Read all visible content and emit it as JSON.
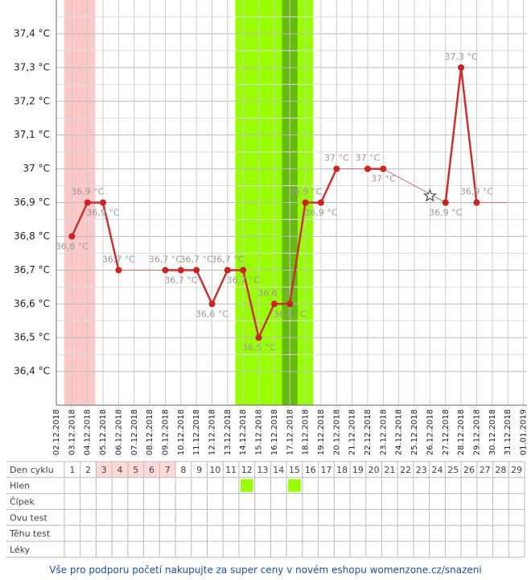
{
  "chart_data": {
    "type": "line",
    "categories": [
      "02.12.2018",
      "03.12.2018",
      "04.12.2018",
      "05.12.2018",
      "06.12.2018",
      "07.12.2018",
      "08.12.2018",
      "09.12.2018",
      "10.12.2018",
      "11.12.2018",
      "12.12.2018",
      "13.12.2018",
      "14.12.2018",
      "15.12.2018",
      "16.12.2018",
      "17.12.2018",
      "18.12.2018",
      "19.12.2018",
      "20.12.2018",
      "21.12.2018",
      "22.12.2018",
      "23.12.2018",
      "24.12.2018",
      "25.12.2018",
      "26.12.2018",
      "27.12.2018",
      "28.12.2018",
      "29.12.2018",
      "30.12.2018",
      "31.12.2018",
      "01.01.2019"
    ],
    "values": [
      null,
      36.8,
      36.9,
      36.9,
      36.7,
      null,
      null,
      36.7,
      36.7,
      36.7,
      36.6,
      36.7,
      36.7,
      36.5,
      36.6,
      36.6,
      36.9,
      36.9,
      37.0,
      null,
      37.0,
      37.0,
      null,
      null,
      null,
      36.9,
      37.3,
      36.9,
      null,
      null,
      null
    ],
    "value_labels": [
      null,
      "36,8 °C",
      "36,9 °C",
      "36,9 °C",
      "36,7 °C",
      null,
      null,
      "36,7 °C",
      "36,7 °C",
      "36,7 °C",
      "36,6 °C",
      "36,7 °C",
      "36,7 °C",
      "36,5 °C",
      "36,6 °C",
      "36,6 °C",
      "36,9 °C",
      "36,9 °C",
      "37 °C",
      null,
      "37 °C",
      "37 °C",
      null,
      null,
      null,
      "36,9 °C",
      "37,3 °C",
      "36,9 °C",
      null,
      null,
      null
    ],
    "excluded_values": [
      null,
      null,
      null,
      null,
      null,
      null,
      null,
      null,
      null,
      null,
      null,
      null,
      null,
      null,
      null,
      null,
      null,
      null,
      null,
      null,
      null,
      null,
      null,
      null,
      36.92,
      null,
      null,
      null,
      null,
      null,
      null
    ],
    "trend_end": "31.12.2018",
    "color": "#c83232",
    "ylim": [
      36.3,
      37.5
    ],
    "yticks": [
      {
        "value": 36.4,
        "label": "36,4 °C"
      },
      {
        "value": 36.5,
        "label": "36,5 °C"
      },
      {
        "value": 36.6,
        "label": "36,6 °C"
      },
      {
        "value": 36.7,
        "label": "36,7 °C"
      },
      {
        "value": 36.8,
        "label": "36,8 °C"
      },
      {
        "value": 36.9,
        "label": "36,9 °C"
      },
      {
        "value": 37,
        "label": "37 °C"
      },
      {
        "value": 37.1,
        "label": "37,1 °C"
      },
      {
        "value": 37.2,
        "label": "37,2 °C"
      },
      {
        "value": 37.3,
        "label": "37,3 °C"
      },
      {
        "value": 37.4,
        "label": "37,4 °C"
      }
    ],
    "grid": true,
    "bands": [
      {
        "from": "03.12.2018",
        "to": "04.12.2018",
        "color": "#ffc8c8"
      },
      {
        "from": "14.12.2018",
        "to": "18.12.2018",
        "color": "#99ff00"
      },
      {
        "from": "17.12.2018",
        "to": "17.12.2018",
        "color": "#66bb11"
      }
    ]
  },
  "table": {
    "row_labels": [
      "Den cyklu",
      "Hlen",
      "Čípek",
      "Ovu test",
      "Těhu test",
      "Léky"
    ],
    "cycle_days": [
      1,
      2,
      3,
      4,
      5,
      6,
      7,
      8,
      9,
      10,
      11,
      12,
      13,
      14,
      15,
      16,
      17,
      18,
      19,
      20,
      21,
      22,
      23,
      24,
      25,
      26,
      27,
      28,
      29
    ],
    "pink_days": [
      3,
      4,
      5,
      6,
      7
    ],
    "pink_color": "#ffd8d8",
    "hlen_days": [
      12,
      15
    ],
    "hlen_color": "#99ff00"
  },
  "footer": {
    "link": "Vše pro podporu početí nakupujte za super ceny v novém eshopu womenzone.cz/snazeni"
  }
}
